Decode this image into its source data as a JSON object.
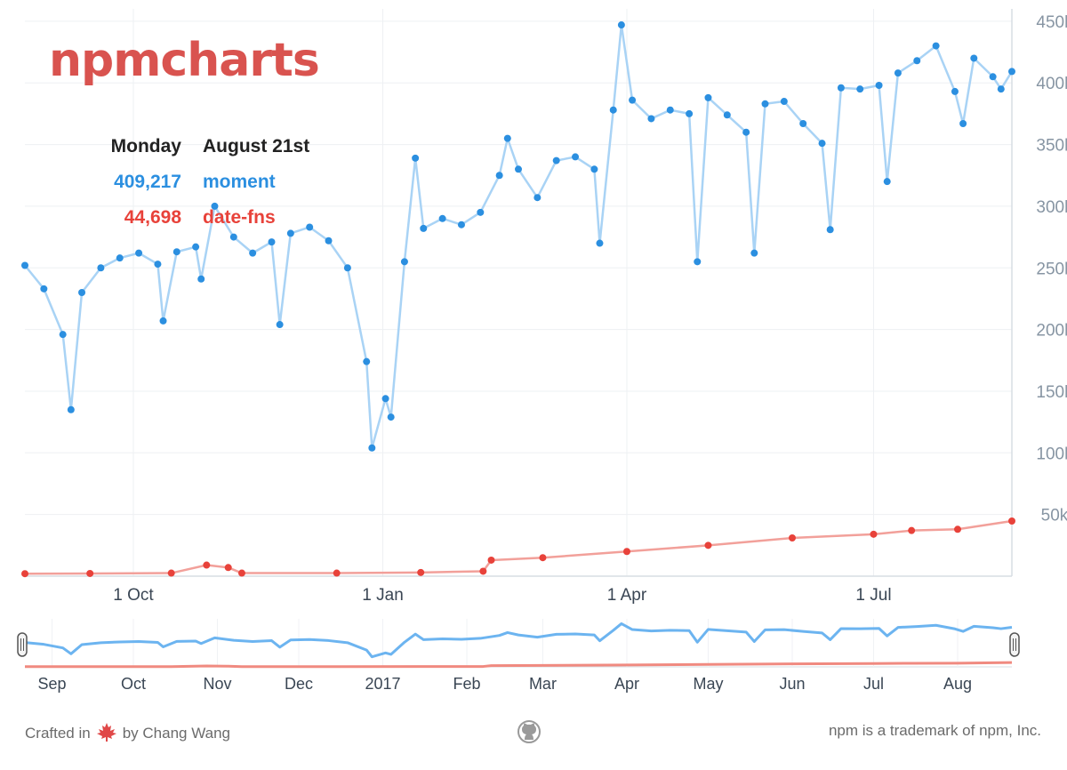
{
  "app": {
    "logo": "npmcharts",
    "brand_color": "#d9534f"
  },
  "tooltip": {
    "weekday": "Monday",
    "date": "August 21st",
    "entries": [
      {
        "value": "409,217",
        "name": "moment",
        "color": "#2b8fe0"
      },
      {
        "value": "44,698",
        "name": "date-fns",
        "color": "#e8423a"
      }
    ]
  },
  "chart_data": {
    "type": "line",
    "x_range": [
      "2016-08-22",
      "2017-08-21"
    ],
    "ylim": [
      0,
      460000
    ],
    "y_ticks": [
      50000,
      100000,
      150000,
      200000,
      250000,
      300000,
      350000,
      400000,
      450000
    ],
    "y_tick_labels": [
      "50k",
      "100k",
      "150k",
      "200k",
      "250k",
      "300k",
      "350k",
      "400k",
      "450k"
    ],
    "x_tick_labels": [
      "1 Oct",
      "1 Jan",
      "1 Apr",
      "1 Jul"
    ],
    "x_tick_dates": [
      "2016-10-01",
      "2017-01-01",
      "2017-04-01",
      "2017-07-01"
    ],
    "grid": true,
    "series": [
      {
        "name": "moment",
        "color": "#2b8fe0",
        "line_color": "#a9d3f5",
        "points": [
          [
            "2016-08-22",
            252000
          ],
          [
            "2016-08-29",
            233000
          ],
          [
            "2016-09-05",
            196000
          ],
          [
            "2016-09-08",
            135000
          ],
          [
            "2016-09-12",
            230000
          ],
          [
            "2016-09-19",
            250000
          ],
          [
            "2016-09-26",
            258000
          ],
          [
            "2016-10-03",
            262000
          ],
          [
            "2016-10-10",
            253000
          ],
          [
            "2016-10-12",
            207000
          ],
          [
            "2016-10-17",
            263000
          ],
          [
            "2016-10-24",
            267000
          ],
          [
            "2016-10-26",
            241000
          ],
          [
            "2016-10-31",
            300000
          ],
          [
            "2016-11-07",
            275000
          ],
          [
            "2016-11-14",
            262000
          ],
          [
            "2016-11-21",
            271000
          ],
          [
            "2016-11-24",
            204000
          ],
          [
            "2016-11-28",
            278000
          ],
          [
            "2016-12-05",
            283000
          ],
          [
            "2016-12-12",
            272000
          ],
          [
            "2016-12-19",
            250000
          ],
          [
            "2016-12-26",
            174000
          ],
          [
            "2016-12-28",
            104000
          ],
          [
            "2017-01-02",
            144000
          ],
          [
            "2017-01-04",
            129000
          ],
          [
            "2017-01-09",
            255000
          ],
          [
            "2017-01-13",
            339000
          ],
          [
            "2017-01-16",
            282000
          ],
          [
            "2017-01-23",
            290000
          ],
          [
            "2017-01-30",
            285000
          ],
          [
            "2017-02-06",
            295000
          ],
          [
            "2017-02-13",
            325000
          ],
          [
            "2017-02-16",
            355000
          ],
          [
            "2017-02-20",
            330000
          ],
          [
            "2017-02-27",
            307000
          ],
          [
            "2017-03-06",
            337000
          ],
          [
            "2017-03-13",
            340000
          ],
          [
            "2017-03-20",
            330000
          ],
          [
            "2017-03-22",
            270000
          ],
          [
            "2017-03-27",
            378000
          ],
          [
            "2017-03-30",
            447000
          ],
          [
            "2017-04-03",
            386000
          ],
          [
            "2017-04-10",
            371000
          ],
          [
            "2017-04-17",
            378000
          ],
          [
            "2017-04-24",
            375000
          ],
          [
            "2017-04-27",
            255000
          ],
          [
            "2017-05-01",
            388000
          ],
          [
            "2017-05-08",
            374000
          ],
          [
            "2017-05-15",
            360000
          ],
          [
            "2017-05-18",
            262000
          ],
          [
            "2017-05-22",
            383000
          ],
          [
            "2017-05-29",
            385000
          ],
          [
            "2017-06-05",
            367000
          ],
          [
            "2017-06-12",
            351000
          ],
          [
            "2017-06-15",
            281000
          ],
          [
            "2017-06-19",
            396000
          ],
          [
            "2017-06-26",
            395000
          ],
          [
            "2017-07-03",
            398000
          ],
          [
            "2017-07-06",
            320000
          ],
          [
            "2017-07-10",
            408000
          ],
          [
            "2017-07-17",
            418000
          ],
          [
            "2017-07-24",
            430000
          ],
          [
            "2017-07-31",
            393000
          ],
          [
            "2017-08-03",
            367000
          ],
          [
            "2017-08-07",
            420000
          ],
          [
            "2017-08-14",
            405000
          ],
          [
            "2017-08-17",
            395000
          ],
          [
            "2017-08-21",
            409217
          ]
        ]
      },
      {
        "name": "date-fns",
        "color": "#e8423a",
        "line_color": "#f2a09a",
        "points": [
          [
            "2016-08-22",
            2000
          ],
          [
            "2016-09-15",
            2200
          ],
          [
            "2016-10-15",
            2500
          ],
          [
            "2016-10-28",
            9000
          ],
          [
            "2016-11-05",
            7000
          ],
          [
            "2016-11-10",
            2500
          ],
          [
            "2016-12-15",
            2500
          ],
          [
            "2017-01-15",
            3000
          ],
          [
            "2017-02-07",
            4000
          ],
          [
            "2017-02-10",
            13000
          ],
          [
            "2017-03-01",
            15000
          ],
          [
            "2017-04-01",
            20000
          ],
          [
            "2017-05-01",
            25000
          ],
          [
            "2017-06-01",
            31000
          ],
          [
            "2017-07-01",
            34000
          ],
          [
            "2017-07-15",
            37000
          ],
          [
            "2017-08-01",
            38000
          ],
          [
            "2017-08-21",
            44698
          ]
        ]
      }
    ],
    "navigator": {
      "x_tick_labels": [
        "Sep",
        "Oct",
        "Nov",
        "Dec",
        "2017",
        "Feb",
        "Mar",
        "Apr",
        "May",
        "Jun",
        "Jul",
        "Aug"
      ],
      "x_tick_dates": [
        "2016-09-01",
        "2016-10-01",
        "2016-11-01",
        "2016-12-01",
        "2017-01-01",
        "2017-02-01",
        "2017-03-01",
        "2017-04-01",
        "2017-05-01",
        "2017-06-01",
        "2017-07-01",
        "2017-08-01"
      ]
    }
  },
  "footer": {
    "crafted_prefix": "Crafted in",
    "crafted_suffix": "by Chang Wang",
    "trademark": "npm is a trademark of npm, Inc."
  }
}
